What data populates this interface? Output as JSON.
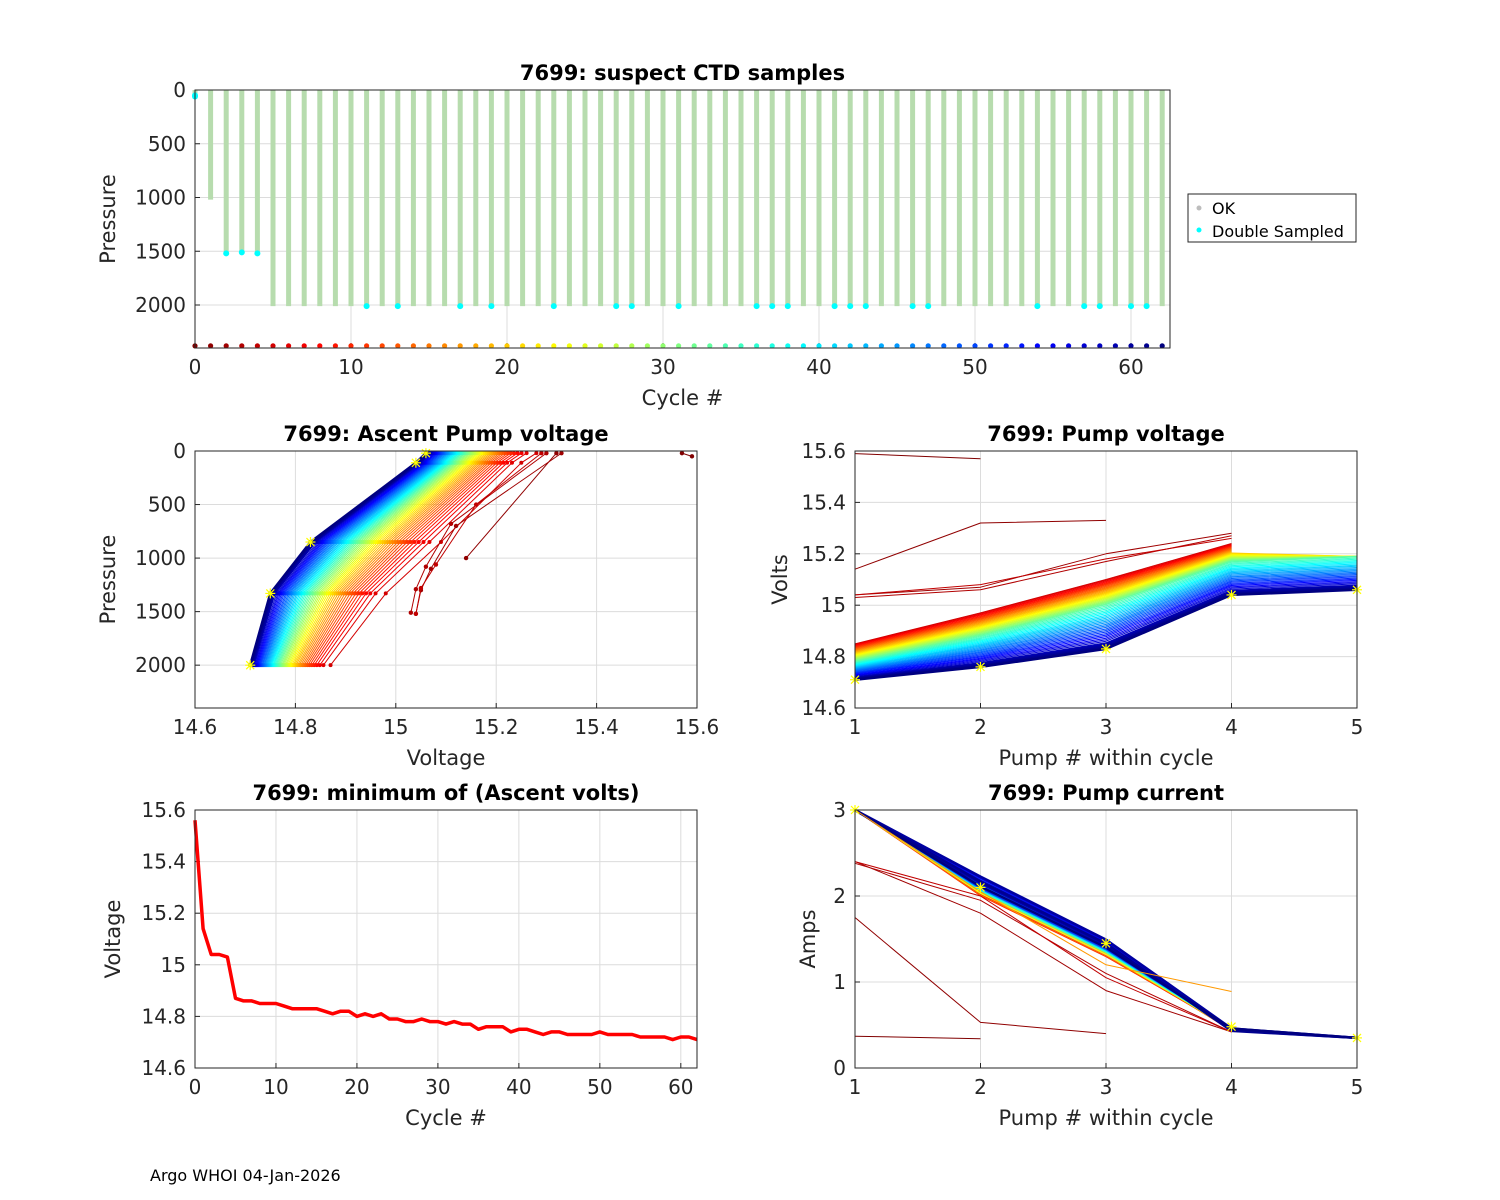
{
  "footer": "Argo WHOI 04-Jan-2026",
  "colors": {
    "ok": "#b7dcae",
    "double_sampled": "#00ffff",
    "min_volts_line": "#ff0000",
    "last_marker": "#ffff00",
    "grid": "#dcdcdc"
  },
  "chart_data": [
    {
      "id": "suspect",
      "type": "scatter",
      "title": "7699: suspect CTD samples",
      "xlabel": "Cycle #",
      "ylabel": "Pressure",
      "xlim": [
        0,
        62.5
      ],
      "ylim": [
        0,
        2400
      ],
      "y_reversed": true,
      "xticks": [
        0,
        10,
        20,
        30,
        40,
        50,
        60
      ],
      "yticks": [
        0,
        500,
        1000,
        1500,
        2000
      ],
      "legend": {
        "placement": "outside-right",
        "entries": [
          "OK",
          "Double Sampled"
        ]
      },
      "ok_profiles": [
        {
          "cycle": 0,
          "max_pressure": 80
        },
        {
          "cycle": 1,
          "max_pressure": 1020
        },
        {
          "cycle": 2,
          "max_pressure": 1520
        },
        {
          "cycle": 3,
          "max_pressure": 1510
        },
        {
          "cycle": 4,
          "max_pressure": 1520
        },
        {
          "cycle_range": [
            5,
            62
          ],
          "max_pressure": 2010
        }
      ],
      "double_sampled": [
        {
          "cycle": 0,
          "pressure": 50
        },
        {
          "cycle": 0,
          "pressure": 60
        },
        {
          "cycle": 2,
          "pressure": 1520
        },
        {
          "cycle": 3,
          "pressure": 1510
        },
        {
          "cycle": 4,
          "pressure": 1520
        },
        {
          "cycle": 11,
          "pressure": 2010
        },
        {
          "cycle": 13,
          "pressure": 2010
        },
        {
          "cycle": 17,
          "pressure": 2010
        },
        {
          "cycle": 19,
          "pressure": 2010
        },
        {
          "cycle": 23,
          "pressure": 2010
        },
        {
          "cycle": 27,
          "pressure": 2010
        },
        {
          "cycle": 28,
          "pressure": 2010
        },
        {
          "cycle": 31,
          "pressure": 2010
        },
        {
          "cycle": 36,
          "pressure": 2010
        },
        {
          "cycle": 37,
          "pressure": 2010
        },
        {
          "cycle": 38,
          "pressure": 2010
        },
        {
          "cycle": 41,
          "pressure": 2010
        },
        {
          "cycle": 42,
          "pressure": 2010
        },
        {
          "cycle": 43,
          "pressure": 2010
        },
        {
          "cycle": 46,
          "pressure": 2010
        },
        {
          "cycle": 47,
          "pressure": 2010
        },
        {
          "cycle": 54,
          "pressure": 2010
        },
        {
          "cycle": 57,
          "pressure": 2010
        },
        {
          "cycle": 58,
          "pressure": 2010
        },
        {
          "cycle": 60,
          "pressure": 2010
        },
        {
          "cycle": 61,
          "pressure": 2010
        }
      ],
      "cycle_marker_pressure": 2380,
      "cycle_marker_range": [
        0,
        62
      ]
    },
    {
      "id": "ascent",
      "type": "line",
      "title": "7699: Ascent Pump voltage",
      "xlabel": "Voltage",
      "ylabel": "Pressure",
      "xlim": [
        14.6,
        15.6
      ],
      "ylim": [
        0,
        2400
      ],
      "y_reversed": true,
      "xticks": [
        14.6,
        14.8,
        15.0,
        15.2,
        15.4,
        15.6
      ],
      "xtick_labels": [
        "14.6",
        "14.8",
        "15",
        "15.2",
        "15.4",
        "15.6"
      ],
      "yticks": [
        0,
        500,
        1000,
        1500,
        2000
      ],
      "pressures": [
        2000,
        1330,
        850,
        110,
        20
      ],
      "first_cycle_voltages": [
        14.87,
        14.98,
        15.09,
        15.25,
        15.28
      ],
      "last_cycle_voltages": [
        14.71,
        14.75,
        14.83,
        15.04,
        15.06
      ],
      "early_cycles": [
        {
          "cycle": 0,
          "points": [
            [
              15.57,
              20
            ],
            [
              15.59,
              50
            ]
          ]
        },
        {
          "cycle": 1,
          "points": [
            [
              15.14,
              1000
            ],
            [
              15.32,
              20
            ]
          ]
        },
        {
          "cycle": 2,
          "points": [
            [
              15.04,
              1520
            ],
            [
              15.05,
              1300
            ],
            [
              15.07,
              1100
            ],
            [
              15.12,
              700
            ],
            [
              15.33,
              20
            ]
          ]
        },
        {
          "cycle": 3,
          "points": [
            [
              15.03,
              1510
            ],
            [
              15.04,
              1290
            ],
            [
              15.06,
              1080
            ],
            [
              15.11,
              680
            ],
            [
              15.3,
              20
            ]
          ]
        },
        {
          "cycle": 4,
          "points": [
            [
              15.04,
              1520
            ],
            [
              15.05,
              1280
            ],
            [
              15.08,
              1060
            ],
            [
              15.16,
              500
            ],
            [
              15.29,
              20
            ]
          ]
        }
      ],
      "cycle_range": [
        5,
        62
      ]
    },
    {
      "id": "pumpv",
      "type": "line",
      "title": "7699: Pump voltage",
      "xlabel": "Pump # within cycle",
      "ylabel": "Volts",
      "xlim": [
        1,
        5
      ],
      "ylim": [
        14.6,
        15.6
      ],
      "xticks": [
        1,
        2,
        3,
        4,
        5
      ],
      "yticks": [
        14.6,
        14.8,
        15.0,
        15.2,
        15.4,
        15.6
      ],
      "ytick_labels": [
        "14.6",
        "14.8",
        "15",
        "15.2",
        "15.4",
        "15.6"
      ],
      "first_cycle_profile": [
        14.85,
        14.97,
        15.1,
        15.24,
        null
      ],
      "mid_cycle_profile": [
        14.78,
        14.88,
        15.0,
        15.17,
        15.19
      ],
      "last_cycle_profile": [
        14.71,
        14.76,
        14.83,
        15.04,
        15.06
      ],
      "early_cycles": [
        {
          "cycle": 0,
          "values": [
            15.59,
            15.57,
            null,
            null,
            null
          ]
        },
        {
          "cycle": 1,
          "values": [
            15.14,
            15.32,
            15.33,
            null,
            null
          ]
        },
        {
          "cycle": 2,
          "values": [
            15.04,
            15.07,
            15.2,
            15.28,
            null
          ]
        },
        {
          "cycle": 3,
          "values": [
            15.03,
            15.06,
            15.17,
            15.27,
            null
          ]
        },
        {
          "cycle": 4,
          "values": [
            15.04,
            15.08,
            15.18,
            15.26,
            null
          ]
        }
      ],
      "cycle_range": [
        5,
        62
      ]
    },
    {
      "id": "minv",
      "type": "line",
      "title": "7699: minimum of (Ascent volts)",
      "xlabel": "Cycle #",
      "ylabel": "Voltage",
      "xlim": [
        0,
        62
      ],
      "ylim": [
        14.6,
        15.6
      ],
      "xticks": [
        0,
        10,
        20,
        30,
        40,
        50,
        60
      ],
      "yticks": [
        14.6,
        14.8,
        15.0,
        15.2,
        15.4,
        15.6
      ],
      "ytick_labels": [
        "14.6",
        "14.8",
        "15",
        "15.2",
        "15.4",
        "15.6"
      ],
      "series": [
        {
          "name": "minimum ascent volts",
          "x": [
            0,
            1,
            2,
            3,
            4,
            5,
            6,
            7,
            8,
            9,
            10,
            11,
            12,
            13,
            14,
            15,
            16,
            17,
            18,
            19,
            20,
            21,
            22,
            23,
            24,
            25,
            26,
            27,
            28,
            29,
            30,
            31,
            32,
            33,
            34,
            35,
            36,
            37,
            38,
            39,
            40,
            41,
            42,
            43,
            44,
            45,
            46,
            47,
            48,
            49,
            50,
            51,
            52,
            53,
            54,
            55,
            56,
            57,
            58,
            59,
            60,
            61,
            62
          ],
          "values": [
            15.56,
            15.14,
            15.04,
            15.04,
            15.03,
            14.87,
            14.86,
            14.86,
            14.85,
            14.85,
            14.85,
            14.84,
            14.83,
            14.83,
            14.83,
            14.83,
            14.82,
            14.81,
            14.82,
            14.82,
            14.8,
            14.81,
            14.8,
            14.81,
            14.79,
            14.79,
            14.78,
            14.78,
            14.79,
            14.78,
            14.78,
            14.77,
            14.78,
            14.77,
            14.77,
            14.75,
            14.76,
            14.76,
            14.76,
            14.74,
            14.75,
            14.75,
            14.74,
            14.73,
            14.74,
            14.74,
            14.73,
            14.73,
            14.73,
            14.73,
            14.74,
            14.73,
            14.73,
            14.73,
            14.73,
            14.72,
            14.72,
            14.72,
            14.72,
            14.71,
            14.72,
            14.72,
            14.71
          ]
        }
      ]
    },
    {
      "id": "pumpc",
      "type": "line",
      "title": "7699: Pump current",
      "xlabel": "Pump # within cycle",
      "ylabel": "Amps",
      "xlim": [
        1,
        5
      ],
      "ylim": [
        0,
        3
      ],
      "xticks": [
        1,
        2,
        3,
        4,
        5
      ],
      "yticks": [
        0,
        1,
        2,
        3
      ],
      "bundle_profile": [
        3.0,
        2.15,
        1.45,
        0.48,
        0.35
      ],
      "early_cycles": [
        {
          "cycle": 0,
          "values": [
            0.37,
            0.34,
            null,
            null,
            null
          ]
        },
        {
          "cycle": 1,
          "values": [
            1.75,
            0.53,
            0.4,
            null,
            null
          ]
        },
        {
          "cycle": 2,
          "values": [
            2.4,
            1.8,
            0.9,
            0.42,
            null
          ]
        },
        {
          "cycle": 3,
          "values": [
            2.38,
            1.95,
            1.1,
            0.42,
            null
          ]
        },
        {
          "cycle": 4,
          "values": [
            2.4,
            2.0,
            1.05,
            0.42,
            null
          ]
        }
      ],
      "orange_outlier": [
        3.0,
        2.05,
        1.2,
        0.89,
        null
      ],
      "cycle_range": [
        5,
        62
      ]
    }
  ]
}
